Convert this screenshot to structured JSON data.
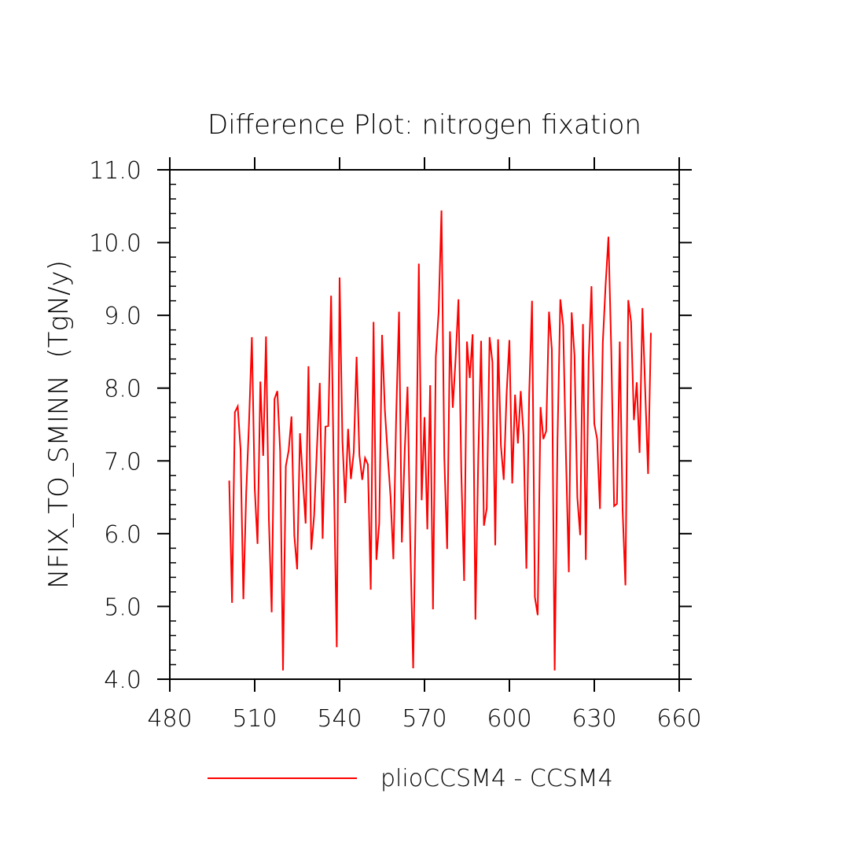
{
  "chart_data": {
    "type": "line",
    "title": "Difference Plot: nitrogen fixation",
    "xlabel": "",
    "ylabel": "NFIX_TO_SMINN  (TgN/y)",
    "xlim": [
      480,
      660
    ],
    "ylim": [
      4.0,
      11.0
    ],
    "xticks": [
      "480",
      "510",
      "540",
      "570",
      "600",
      "630",
      "660"
    ],
    "yticks": [
      "4.0",
      "5.0",
      "6.0",
      "7.0",
      "8.0",
      "9.0",
      "10.0",
      "11.0"
    ],
    "grid": false,
    "legend": "bottom-center",
    "colors": {
      "series": "#ff0000",
      "axes": "#000000"
    },
    "series": [
      {
        "name": "plioCCSM4 - CCSM4",
        "x": [
          501,
          502,
          503,
          504,
          505,
          506,
          507,
          508,
          509,
          510,
          511,
          512,
          513,
          514,
          515,
          516,
          517,
          518,
          519,
          520,
          521,
          522,
          523,
          524,
          525,
          526,
          527,
          528,
          529,
          530,
          531,
          532,
          533,
          534,
          535,
          536,
          537,
          538,
          539,
          540,
          541,
          542,
          543,
          544,
          545,
          546,
          547,
          548,
          549,
          550,
          551,
          552,
          553,
          554,
          555,
          556,
          557,
          558,
          559,
          560,
          561,
          562,
          563,
          564,
          565,
          566,
          567,
          568,
          569,
          570,
          571,
          572,
          573,
          574,
          575,
          576,
          577,
          578,
          579,
          580,
          581,
          582,
          583,
          584,
          585,
          586,
          587,
          588,
          589,
          590,
          591,
          592,
          593,
          594,
          595,
          596,
          597,
          598,
          599,
          600,
          601,
          602,
          603,
          604,
          605,
          606,
          607,
          608,
          609,
          610,
          611,
          612,
          613,
          614,
          615,
          616,
          617,
          618,
          619,
          620,
          621,
          622,
          623,
          624,
          625,
          626,
          627,
          628,
          629,
          630,
          631,
          632,
          633,
          634,
          635,
          636,
          637,
          638,
          639,
          640,
          641,
          642,
          643,
          644,
          645,
          646,
          647,
          648,
          649,
          650
        ],
        "values": [
          6.73,
          5.05,
          7.67,
          7.75,
          7.16,
          5.1,
          6.56,
          7.53,
          8.7,
          6.63,
          5.86,
          8.09,
          7.07,
          8.71,
          6.21,
          4.92,
          7.85,
          7.96,
          7.13,
          4.12,
          6.93,
          7.14,
          7.61,
          5.97,
          5.51,
          7.38,
          6.76,
          6.14,
          8.3,
          5.78,
          6.25,
          7.18,
          8.07,
          5.93,
          7.47,
          7.48,
          9.27,
          6.69,
          4.44,
          9.52,
          7.27,
          6.42,
          7.44,
          6.75,
          7.12,
          8.43,
          7.08,
          6.74,
          7.04,
          6.95,
          5.23,
          8.91,
          5.64,
          6.14,
          8.73,
          7.7,
          7.08,
          6.51,
          5.65,
          7.62,
          9.05,
          5.88,
          7.13,
          8.02,
          5.82,
          4.15,
          6.62,
          9.71,
          6.46,
          7.6,
          6.06,
          8.04,
          4.96,
          8.43,
          9.05,
          10.44,
          7.05,
          5.79,
          8.78,
          7.73,
          8.41,
          9.22,
          6.87,
          5.35,
          8.64,
          8.14,
          8.74,
          4.82,
          7.05,
          8.65,
          6.11,
          6.35,
          8.7,
          8.36,
          5.84,
          8.67,
          7.21,
          6.74,
          7.91,
          8.66,
          6.69,
          7.91,
          7.24,
          7.96,
          7.35,
          5.52,
          7.93,
          9.2,
          5.13,
          4.88,
          7.74,
          7.3,
          7.41,
          9.05,
          8.53,
          4.12,
          7.29,
          9.22,
          8.86,
          7.05,
          5.47,
          9.04,
          8.45,
          6.5,
          5.98,
          8.88,
          5.64,
          8.37,
          9.4,
          7.51,
          7.3,
          6.34,
          8.62,
          9.42,
          10.08,
          8.51,
          6.38,
          6.41,
          8.64,
          6.33,
          5.29,
          9.21,
          8.91,
          7.56,
          8.08,
          7.11,
          9.1,
          7.96,
          6.82,
          8.76
        ]
      }
    ]
  }
}
